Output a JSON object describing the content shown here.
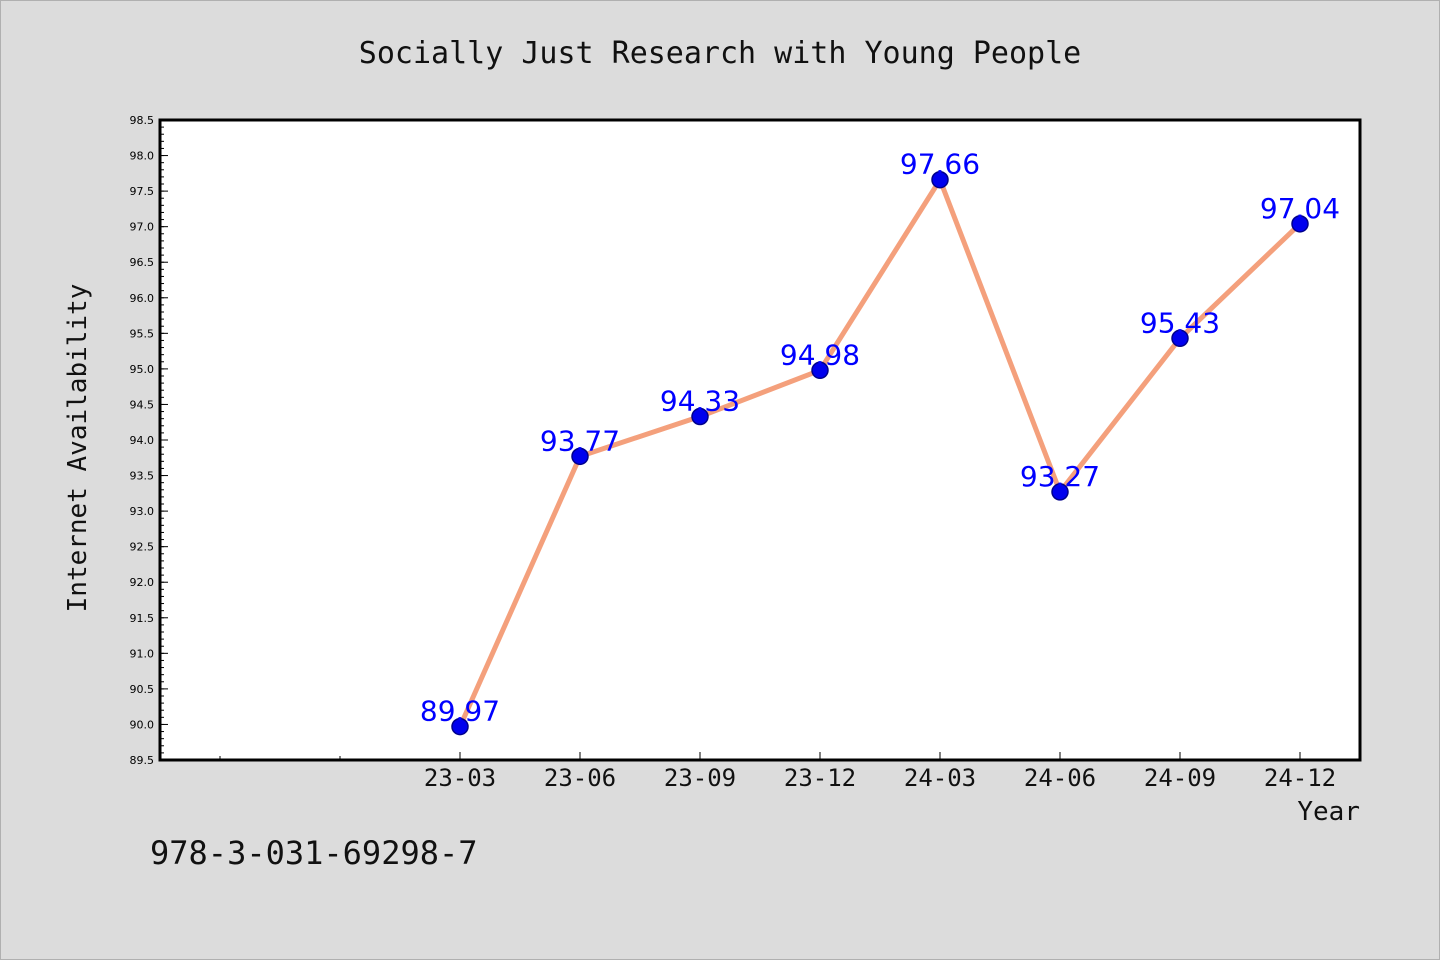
{
  "chart_data": {
    "type": "line",
    "title": "Socially Just Research with Young People",
    "xlabel": "Year",
    "ylabel": "Internet Availability",
    "categories": [
      "23-03",
      "23-06",
      "23-09",
      "23-12",
      "24-03",
      "24-06",
      "24-09",
      "24-12"
    ],
    "series": [
      {
        "values": [
          89.97,
          93.77,
          94.33,
          94.98,
          97.66,
          93.27,
          95.43,
          97.04
        ]
      }
    ],
    "ylim": [
      89.5,
      98.5
    ],
    "y_ticks": [
      "89.5",
      "90.0",
      "90.5",
      "91.0",
      "91.5",
      "92.0",
      "92.5",
      "93.0",
      "93.5",
      "94.0",
      "94.5",
      "95.0",
      "95.5",
      "96.0",
      "96.5",
      "97.0",
      "97.5",
      "98.0",
      "98.5"
    ],
    "data_labels": [
      "89.97",
      "93.77",
      "94.33",
      "94.98",
      "97.66",
      "93.27",
      "95.43",
      "97.04"
    ],
    "grid": false,
    "legend": "none",
    "colors": {
      "line": "#f4a07c",
      "marker": "#0000ee",
      "marker_edge": "#00008b",
      "label": "#0000ff",
      "background": "#dcdcdc",
      "plot_bg": "#ffffff"
    }
  },
  "footer_text": "978-3-031-69298-7"
}
